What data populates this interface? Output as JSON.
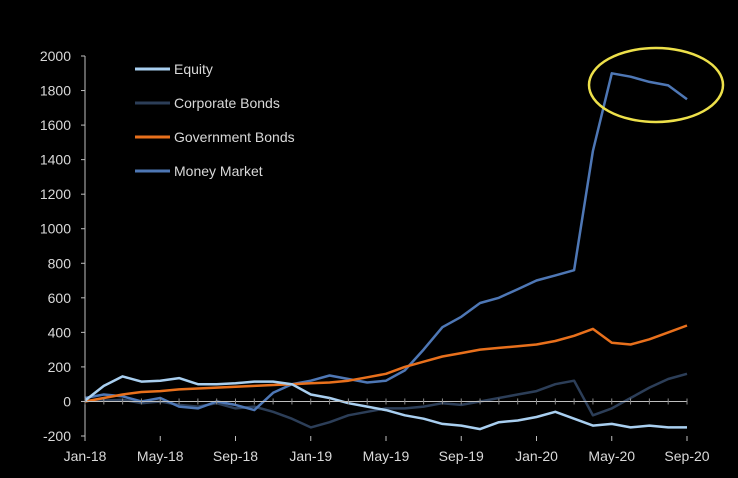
{
  "chart_data": {
    "type": "line",
    "title": "",
    "xlabel": "",
    "ylabel": "",
    "ylim": [
      -200,
      2000
    ],
    "yticks": [
      -200,
      0,
      200,
      400,
      600,
      800,
      1000,
      1200,
      1400,
      1600,
      1800,
      2000
    ],
    "xticks": [
      "Jan-18",
      "May-18",
      "Sep-18",
      "Jan-19",
      "May-19",
      "Sep-19",
      "Jan-20",
      "May-20",
      "Sep-20"
    ],
    "grid": false,
    "legend": "top-left",
    "x": [
      "Jan-18",
      "Feb-18",
      "Mar-18",
      "Apr-18",
      "May-18",
      "Jun-18",
      "Jul-18",
      "Aug-18",
      "Sep-18",
      "Oct-18",
      "Nov-18",
      "Dec-18",
      "Jan-19",
      "Feb-19",
      "Mar-19",
      "Apr-19",
      "May-19",
      "Jun-19",
      "Jul-19",
      "Aug-19",
      "Sep-19",
      "Oct-19",
      "Nov-19",
      "Dec-19",
      "Jan-20",
      "Feb-20",
      "Mar-20",
      "Apr-20",
      "May-20",
      "Jun-20",
      "Jul-20",
      "Aug-20",
      "Sep-20"
    ],
    "series": [
      {
        "name": "Equity",
        "color": "#a9cff0",
        "values": [
          5,
          90,
          145,
          115,
          120,
          135,
          100,
          100,
          105,
          115,
          115,
          100,
          40,
          20,
          -10,
          -30,
          -50,
          -80,
          -100,
          -130,
          -140,
          -160,
          -120,
          -110,
          -90,
          -60,
          -100,
          -140,
          -130,
          -150,
          -140,
          -150,
          -150
        ]
      },
      {
        "name": "Corporate Bonds",
        "color": "#2c3e58",
        "values": [
          5,
          5,
          10,
          -10,
          0,
          -20,
          -30,
          -10,
          -40,
          -30,
          -60,
          -100,
          -150,
          -120,
          -80,
          -60,
          -40,
          -40,
          -30,
          -10,
          -20,
          0,
          20,
          40,
          60,
          100,
          120,
          -80,
          -40,
          20,
          80,
          130,
          160
        ]
      },
      {
        "name": "Government Bonds",
        "color": "#e8701c",
        "values": [
          0,
          20,
          40,
          55,
          60,
          70,
          75,
          80,
          85,
          90,
          95,
          100,
          105,
          110,
          120,
          140,
          160,
          200,
          230,
          260,
          280,
          300,
          310,
          320,
          330,
          350,
          380,
          420,
          340,
          330,
          360,
          400,
          440
        ]
      },
      {
        "name": "Money Market",
        "color": "#4e77b5",
        "values": [
          20,
          40,
          30,
          0,
          20,
          -30,
          -40,
          0,
          -20,
          -50,
          50,
          100,
          120,
          150,
          130,
          110,
          120,
          180,
          300,
          430,
          490,
          570,
          600,
          650,
          700,
          730,
          760,
          1450,
          1900,
          1880,
          1850,
          1830,
          1750
        ]
      }
    ]
  }
}
